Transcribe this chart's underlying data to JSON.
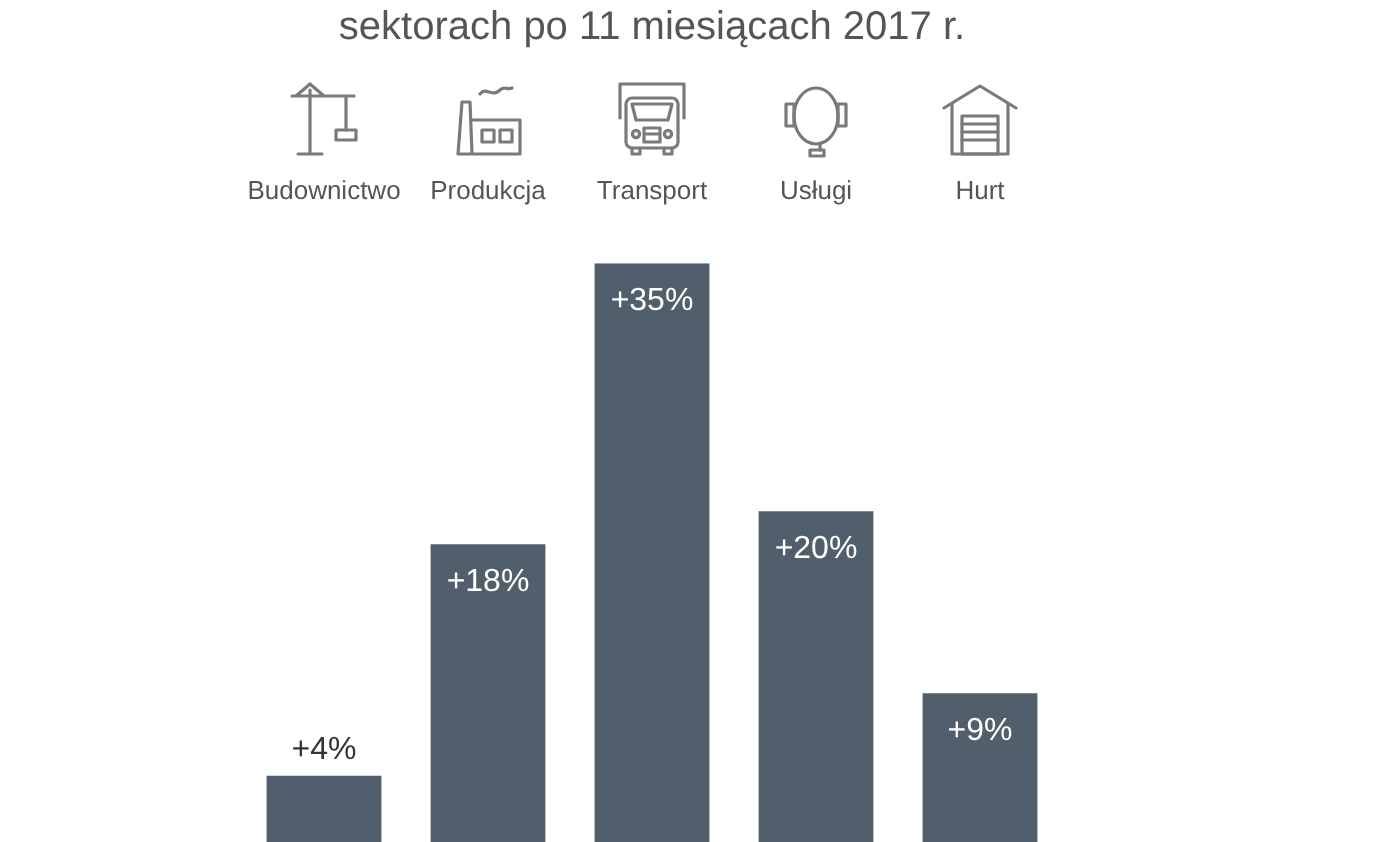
{
  "chart_data": {
    "type": "bar",
    "title": "sektorach po 11 miesiącach 2017 r.",
    "categories": [
      "Budownictwo",
      "Produkcja",
      "Transport",
      "Usługi",
      "Hurt"
    ],
    "values": [
      4,
      18,
      35,
      20,
      9
    ],
    "value_labels": [
      "+4%",
      "+18%",
      "+35%",
      "+20%",
      "+9%"
    ],
    "color": "#505f6b",
    "tick_labels": "x"
  }
}
